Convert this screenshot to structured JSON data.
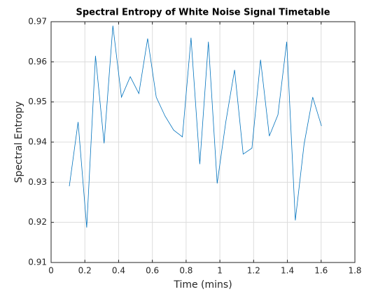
{
  "chart_data": {
    "type": "line",
    "title": "Spectral Entropy of White Noise Signal Timetable",
    "x_label": "Time (mins)",
    "y_label": "Spectral Entropy",
    "x": [
      0.108,
      0.16,
      0.211,
      0.263,
      0.314,
      0.366,
      0.417,
      0.469,
      0.52,
      0.572,
      0.623,
      0.675,
      0.726,
      0.778,
      0.829,
      0.881,
      0.932,
      0.984,
      1.035,
      1.087,
      1.138,
      1.19,
      1.241,
      1.293,
      1.344,
      1.396,
      1.447,
      1.499,
      1.55,
      1.602
    ],
    "series": [
      {
        "name": "Spectral Entropy",
        "color": "#0072bd",
        "values": [
          0.929,
          0.945,
          0.9187,
          0.9615,
          0.9397,
          0.969,
          0.9512,
          0.9563,
          0.9521,
          0.9658,
          0.9512,
          0.9465,
          0.943,
          0.9413,
          0.966,
          0.9345,
          0.965,
          0.9297,
          0.945,
          0.958,
          0.937,
          0.9385,
          0.9605,
          0.9415,
          0.9468,
          0.965,
          0.9205,
          0.9395,
          0.9512,
          0.944
        ]
      }
    ],
    "xlim": [
      0,
      1.8
    ],
    "xticks": [
      0,
      0.2,
      0.4,
      0.6,
      0.8,
      1,
      1.2,
      1.4,
      1.6,
      1.8
    ],
    "ylim": [
      0.91,
      0.97
    ],
    "yticks": [
      0.91,
      0.92,
      0.93,
      0.94,
      0.95,
      0.96,
      0.97
    ],
    "grid": true
  }
}
